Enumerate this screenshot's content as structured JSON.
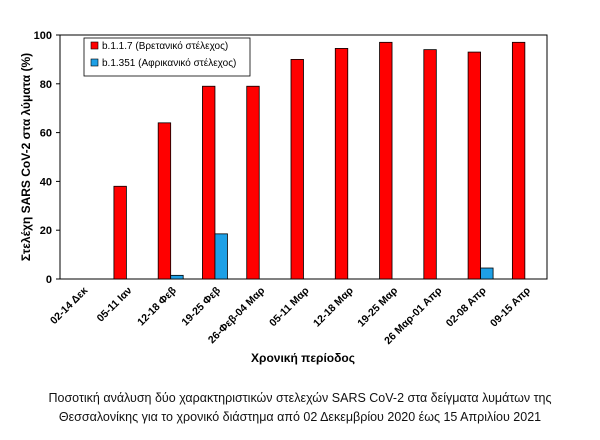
{
  "chart_data": {
    "type": "bar",
    "title": "",
    "xlabel": "Χρονική περίοδος",
    "ylabel": "Στελέχη SARS CoV-2  στα λύματα (%)",
    "ylim": [
      0,
      100
    ],
    "yticks": [
      0,
      20,
      40,
      60,
      80,
      100
    ],
    "grid": false,
    "legend_position": "top-left",
    "categories": [
      "02-14 Δεκ",
      "05-11 Ιαν",
      "12-18 Φεβ",
      "19-25 Φεβ",
      "26-Φεβ-04 Μαρ",
      "05-11 Μαρ",
      "12-18 Μαρ",
      "19-25 Μαρ",
      "26 Μαρ-01 Απρ",
      "02-08 Απρ",
      "09-15 Απρ"
    ],
    "series": [
      {
        "name": "b.1.1.7 (Βρετανικό στέλεχος)",
        "color": "#ff0000",
        "values": [
          0,
          38,
          64,
          79,
          79,
          90,
          94.5,
          97,
          94,
          93,
          97
        ]
      },
      {
        "name": "b.1.351 (Αφρικανικό στέλεχος)",
        "color": "#1ea0e6",
        "values": [
          0,
          0,
          1.5,
          18.5,
          0,
          0,
          0,
          0,
          0,
          4.5,
          0
        ]
      }
    ]
  },
  "caption": {
    "line1": "Ποσοτική ανάλυση δύο χαρακτηριστικών στελεχών SARS CoV-2 στα δείγματα λυμάτων της",
    "line2": "Θεσσαλονίκης για το χρονικό διάστημα από 02 Δεκεμβρίου 2020 έως 15 Απριλίου 2021"
  }
}
